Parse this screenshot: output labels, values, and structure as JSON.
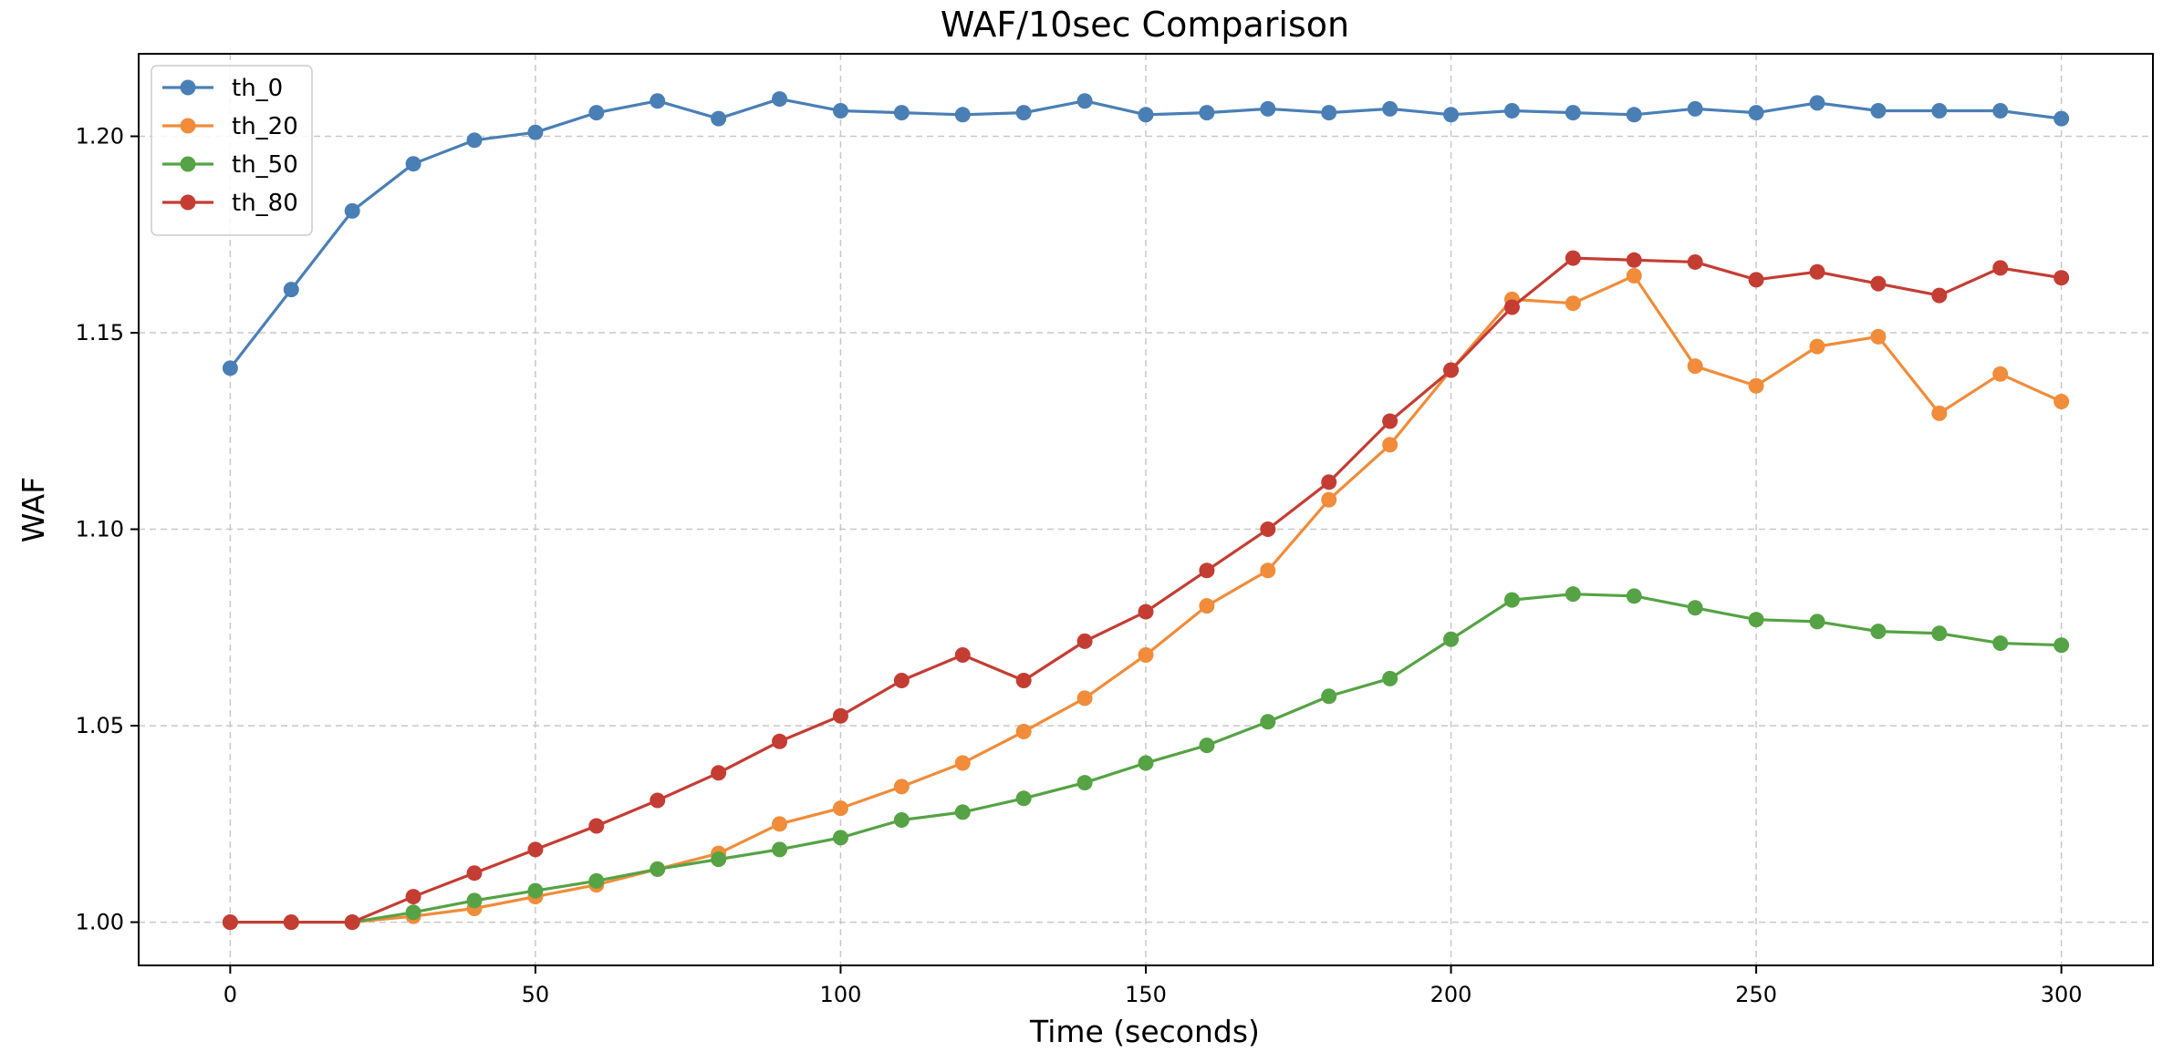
{
  "chart_data": {
    "type": "line",
    "title": "WAF/10sec Comparison",
    "xlabel": "Time (seconds)",
    "ylabel": "WAF",
    "xlim": [
      -15,
      315
    ],
    "ylim": [
      0.989,
      1.221
    ],
    "xticks": [
      0,
      50,
      100,
      150,
      200,
      250,
      300
    ],
    "xtick_labels": [
      "0",
      "50",
      "100",
      "150",
      "200",
      "250",
      "300"
    ],
    "yticks": [
      1.0,
      1.05,
      1.1,
      1.15,
      1.2
    ],
    "ytick_labels": [
      "1.00",
      "1.05",
      "1.10",
      "1.15",
      "1.20"
    ],
    "grid": true,
    "legend_position": "top-left",
    "x": [
      0,
      10,
      20,
      30,
      40,
      50,
      60,
      70,
      80,
      90,
      100,
      110,
      120,
      130,
      140,
      150,
      160,
      170,
      180,
      190,
      200,
      210,
      220,
      230,
      240,
      250,
      260,
      270,
      280,
      290,
      300
    ],
    "series": [
      {
        "name": "th_0",
        "color": "#4a7fb5",
        "values": [
          1.141,
          1.161,
          1.181,
          1.193,
          1.199,
          1.201,
          1.206,
          1.209,
          1.2045,
          1.2095,
          1.2065,
          1.206,
          1.2055,
          1.206,
          1.209,
          1.2055,
          1.206,
          1.207,
          1.206,
          1.207,
          1.2055,
          1.2065,
          1.206,
          1.2055,
          1.207,
          1.206,
          1.2085,
          1.2065,
          1.2065,
          1.2065,
          1.2045
        ]
      },
      {
        "name": "th_20",
        "color": "#f08c3a",
        "values": [
          1.0,
          1.0,
          1.0,
          1.0015,
          1.0035,
          1.0065,
          1.0095,
          1.0135,
          1.0175,
          1.025,
          1.029,
          1.0345,
          1.0405,
          1.0485,
          1.057,
          1.068,
          1.0805,
          1.0895,
          1.1075,
          1.1215,
          1.1405,
          1.1585,
          1.1575,
          1.1645,
          1.1415,
          1.1365,
          1.1465,
          1.149,
          1.1295,
          1.1395,
          1.1325
        ]
      },
      {
        "name": "th_50",
        "color": "#55a344",
        "values": [
          1.0,
          1.0,
          1.0,
          1.0025,
          1.0055,
          1.008,
          1.0105,
          1.0135,
          1.016,
          1.0185,
          1.0215,
          1.026,
          1.028,
          1.0315,
          1.0355,
          1.0405,
          1.045,
          1.051,
          1.0575,
          1.062,
          1.072,
          1.082,
          1.0835,
          1.083,
          1.08,
          1.077,
          1.0765,
          1.074,
          1.0735,
          1.071,
          1.0705
        ]
      },
      {
        "name": "th_80",
        "color": "#c43d33",
        "values": [
          1.0,
          1.0,
          1.0,
          1.0065,
          1.0125,
          1.0185,
          1.0245,
          1.031,
          1.038,
          1.046,
          1.0525,
          1.0615,
          1.068,
          1.0615,
          1.0715,
          1.079,
          1.0895,
          1.1,
          1.112,
          1.1275,
          1.1405,
          1.1565,
          1.169,
          1.1685,
          1.168,
          1.1635,
          1.1655,
          1.1625,
          1.1595,
          1.1665,
          1.164
        ]
      }
    ]
  }
}
